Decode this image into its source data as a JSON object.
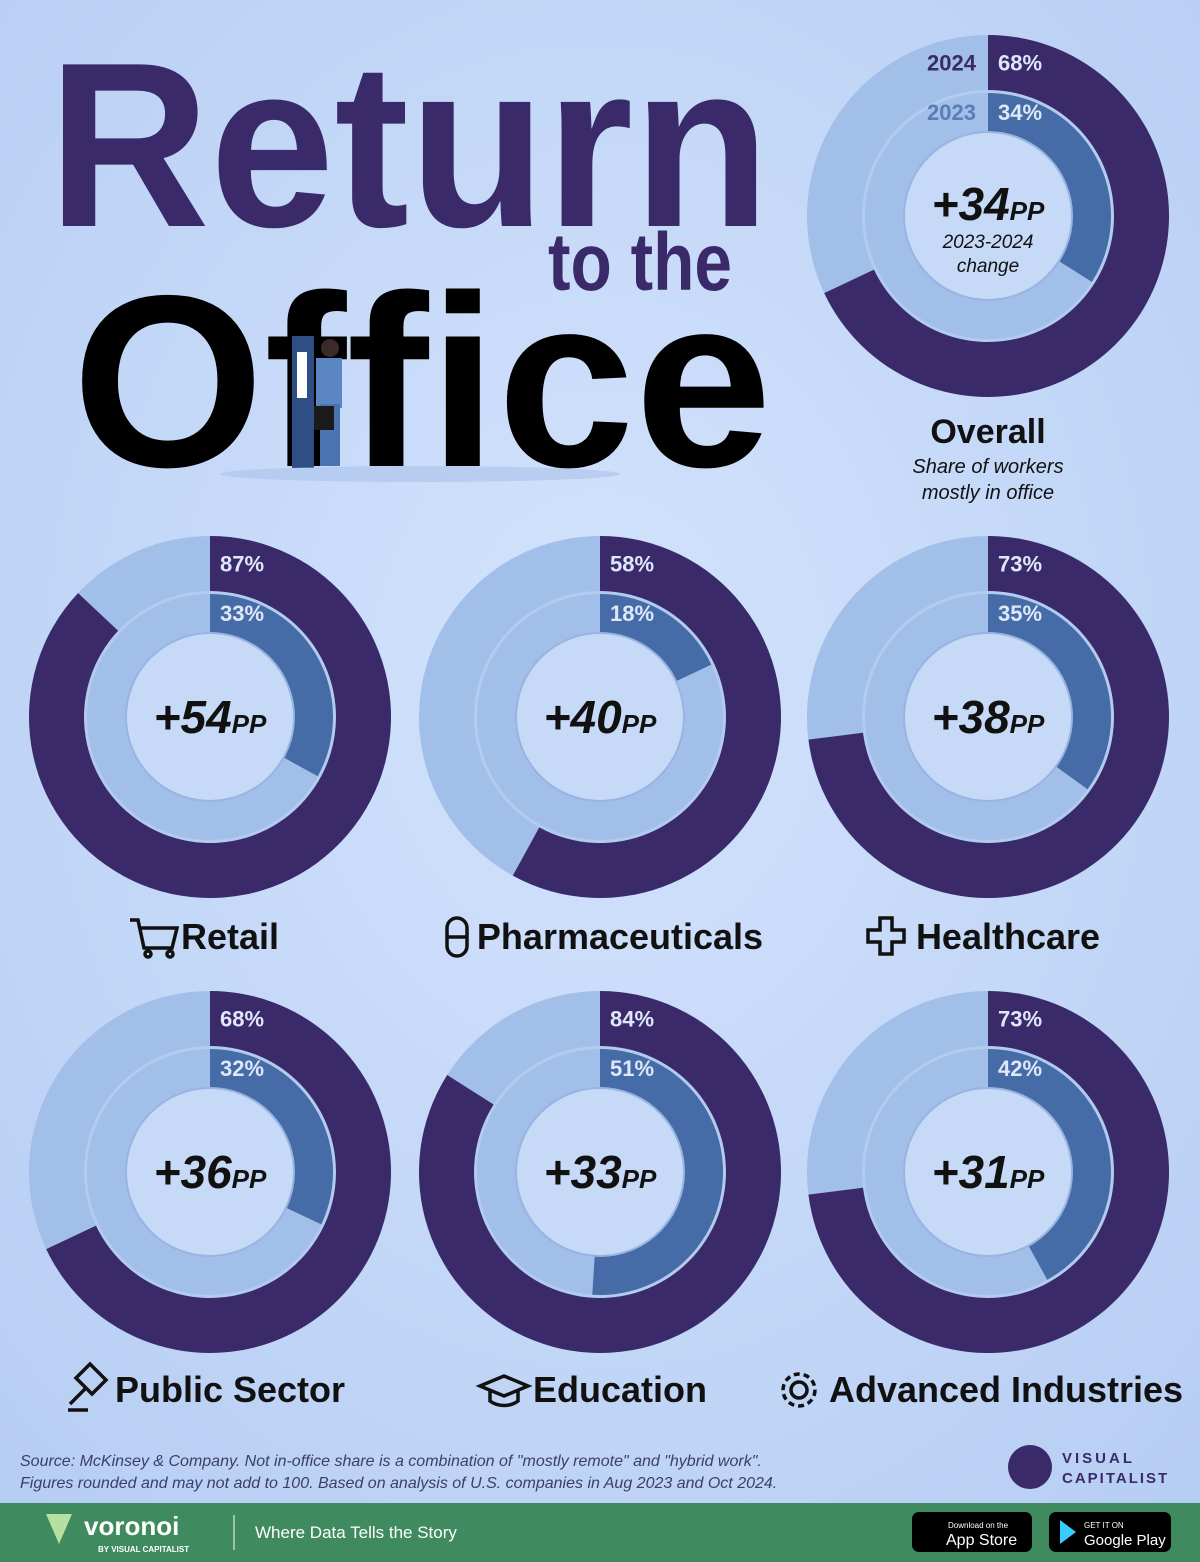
{
  "header": {
    "title_line1": "Return",
    "title_line2": "to the",
    "title_line3": "Office"
  },
  "chart_data": [
    {
      "type": "donut",
      "title": "Overall",
      "subtitle": [
        "Share of workers",
        "mostly in office"
      ],
      "note": [
        "2023-2024",
        "change"
      ],
      "series": [
        {
          "name": "2024",
          "color": "#3a2a6a",
          "values": [
            68
          ],
          "value_labels": [
            "68%"
          ]
        },
        {
          "name": "2023",
          "color": "#456ca6",
          "values": [
            34
          ],
          "value_labels": [
            "34%"
          ]
        }
      ],
      "change": 34,
      "change_label": "+34",
      "change_unit": "PP"
    },
    {
      "type": "donut",
      "title": "Retail",
      "series": [
        {
          "color": "#3a2a6a",
          "values": [
            87
          ],
          "value_labels": [
            "87%"
          ]
        },
        {
          "color": "#456ca6",
          "values": [
            33
          ],
          "value_labels": [
            "33%"
          ]
        }
      ],
      "change": 54,
      "change_label": "+54",
      "change_unit": "PP"
    },
    {
      "type": "donut",
      "title": "Pharmaceuticals",
      "series": [
        {
          "color": "#3a2a6a",
          "values": [
            58
          ],
          "value_labels": [
            "58%"
          ]
        },
        {
          "color": "#456ca6",
          "values": [
            18
          ],
          "value_labels": [
            "18%"
          ]
        }
      ],
      "change": 40,
      "change_label": "+40",
      "change_unit": "PP"
    },
    {
      "type": "donut",
      "title": "Healthcare",
      "series": [
        {
          "color": "#3a2a6a",
          "values": [
            73
          ],
          "value_labels": [
            "73%"
          ]
        },
        {
          "color": "#456ca6",
          "values": [
            35
          ],
          "value_labels": [
            "35%"
          ]
        }
      ],
      "change": 38,
      "change_label": "+38",
      "change_unit": "PP"
    },
    {
      "type": "donut",
      "title": "Public Sector",
      "series": [
        {
          "color": "#3a2a6a",
          "values": [
            68
          ],
          "value_labels": [
            "68%"
          ]
        },
        {
          "color": "#456ca6",
          "values": [
            32
          ],
          "value_labels": [
            "32%"
          ]
        }
      ],
      "change": 36,
      "change_label": "+36",
      "change_unit": "PP"
    },
    {
      "type": "donut",
      "title": "Education",
      "series": [
        {
          "color": "#3a2a6a",
          "values": [
            84
          ],
          "value_labels": [
            "84%"
          ]
        },
        {
          "color": "#456ca6",
          "values": [
            51
          ],
          "value_labels": [
            "51%"
          ]
        }
      ],
      "change": 33,
      "change_label": "+33",
      "change_unit": "PP"
    },
    {
      "type": "donut",
      "title": "Advanced Industries",
      "series": [
        {
          "color": "#3a2a6a",
          "values": [
            73
          ],
          "value_labels": [
            "73%"
          ]
        },
        {
          "color": "#456ca6",
          "values": [
            42
          ],
          "value_labels": [
            "42%"
          ]
        }
      ],
      "change": 31,
      "change_label": "+31",
      "change_unit": "PP"
    }
  ],
  "footer": {
    "source": [
      "Source: McKinsey & Company. Not in-office share is a combination of \"mostly remote\" and \"hybrid work\".",
      "Figures rounded and may not add to 100. Based on analysis of U.S. companies in Aug 2023 and Oct 2024."
    ],
    "brand": [
      "VISUAL",
      "CAPITALIST"
    ],
    "logo": "voronoi",
    "logo_sub": "BY VISUAL CAPITALIST",
    "tagline": "Where Data Tells the Story",
    "app_store": [
      "Download on the",
      "App Store"
    ],
    "google_play": [
      "GET IT ON",
      "Google Play"
    ]
  }
}
